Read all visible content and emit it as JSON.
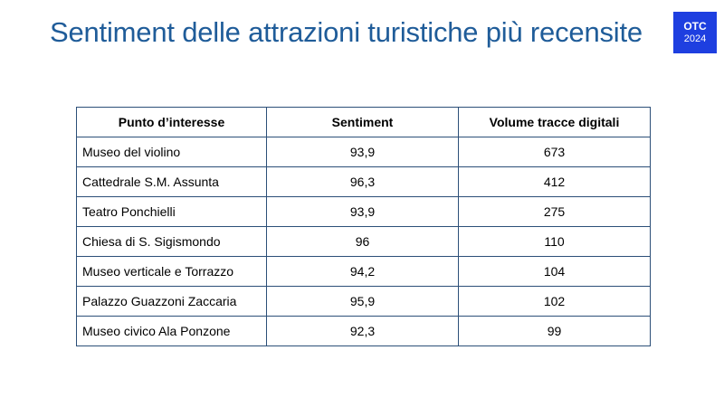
{
  "title": "Sentiment delle attrazioni turistiche più recensite",
  "badge": {
    "label": "OTC",
    "year": "2024",
    "color": "#1e3fe0"
  },
  "table": {
    "headers": [
      "Punto d’interesse",
      "Sentiment",
      "Volume tracce digitali"
    ],
    "rows": [
      {
        "name": "Museo del violino",
        "sentiment": "93,9",
        "volume": "673"
      },
      {
        "name": "Cattedrale S.M. Assunta",
        "sentiment": "96,3",
        "volume": "412"
      },
      {
        "name": "Teatro Ponchielli",
        "sentiment": "93,9",
        "volume": "275"
      },
      {
        "name": "Chiesa di S. Sigismondo",
        "sentiment": "96",
        "volume": "110"
      },
      {
        "name": "Museo verticale e Torrazzo",
        "sentiment": "94,2",
        "volume": "104"
      },
      {
        "name": "Palazzo Guazzoni Zaccaria",
        "sentiment": "95,9",
        "volume": "102"
      },
      {
        "name": "Museo civico Ala Ponzone",
        "sentiment": "92,3",
        "volume": "99"
      }
    ]
  },
  "colors": {
    "title": "#1f5c99",
    "table_border": "#2c4f78"
  }
}
